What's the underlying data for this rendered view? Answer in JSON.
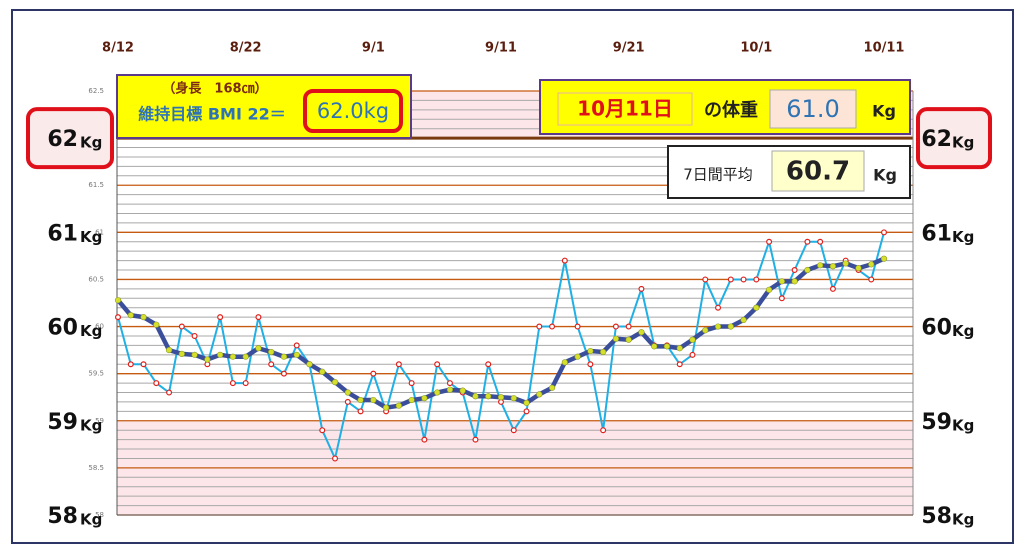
{
  "chart_data": {
    "type": "line",
    "categories": [
      "8/12",
      null,
      null,
      null,
      null,
      null,
      null,
      null,
      null,
      null,
      "8/22",
      null,
      null,
      null,
      null,
      null,
      null,
      null,
      null,
      null,
      "9/1",
      null,
      null,
      null,
      null,
      null,
      null,
      null,
      null,
      null,
      "9/11",
      null,
      null,
      null,
      null,
      null,
      null,
      null,
      null,
      null,
      "9/21",
      null,
      null,
      null,
      null,
      null,
      null,
      null,
      null,
      null,
      "10/1",
      null,
      null,
      null,
      null,
      null,
      null,
      null,
      null,
      null,
      "10/11"
    ],
    "series": [
      {
        "color": "#1fb0e6",
        "marker_color": "#e0201c",
        "values": [
          60.1,
          59.6,
          59.6,
          59.4,
          59.3,
          60.0,
          59.9,
          59.6,
          60.1,
          59.4,
          59.4,
          60.1,
          59.6,
          59.5,
          59.8,
          59.6,
          58.9,
          58.6,
          59.2,
          59.1,
          59.5,
          59.1,
          59.6,
          59.4,
          58.8,
          59.6,
          59.4,
          59.3,
          58.8,
          59.6,
          59.2,
          58.9,
          59.1,
          60.0,
          60.0,
          60.7,
          60.0,
          59.6,
          58.9,
          60.0,
          60.0,
          60.4,
          59.8,
          59.8,
          59.6,
          59.7,
          60.5,
          60.2,
          60.5,
          60.5,
          60.5,
          60.9,
          60.3,
          60.6,
          60.9,
          60.9,
          60.4,
          60.7,
          60.6,
          60.5,
          61.0
        ]
      },
      {
        "color": "#3b4e9c",
        "marker_color": "#d6e02c",
        "values": [
          60.28,
          60.12,
          60.1,
          60.02,
          59.75,
          59.71,
          59.7,
          59.65,
          59.7,
          59.68,
          59.68,
          59.77,
          59.73,
          59.68,
          59.7,
          59.6,
          59.52,
          59.41,
          59.3,
          59.22,
          59.22,
          59.14,
          59.16,
          59.22,
          59.24,
          59.3,
          59.33,
          59.32,
          59.26,
          59.26,
          59.25,
          59.24,
          59.19,
          59.28,
          59.35,
          59.62,
          59.68,
          59.74,
          59.73,
          59.87,
          59.86,
          59.94,
          59.79,
          59.79,
          59.77,
          59.86,
          59.96,
          60.0,
          60.0,
          60.07,
          60.2,
          60.39,
          60.48,
          60.48,
          60.6,
          60.65,
          60.64,
          60.67,
          60.62,
          60.66,
          60.72
        ]
      }
    ],
    "ylim": [
      58,
      62.5
    ],
    "yticks": [
      58,
      58.5,
      59,
      59.5,
      60,
      60.5,
      61,
      61.5,
      62,
      62.5
    ],
    "minor_yticks": [
      58.1,
      58.2,
      58.3,
      58.4,
      58.6,
      58.7,
      58.8,
      58.9,
      59.1,
      59.2,
      59.3,
      59.4,
      59.6,
      59.7,
      59.8,
      59.9,
      60.1,
      60.2,
      60.3,
      60.4,
      60.6,
      60.7,
      60.8,
      60.9,
      61.1,
      61.2,
      61.3,
      61.4,
      61.6,
      61.7,
      61.8,
      61.9,
      62.1,
      62.2,
      62.3,
      62.4
    ],
    "big_yticks": [
      58,
      59,
      60,
      61,
      62
    ],
    "highlight_ytick": 62,
    "unit": "Kg",
    "bands": [
      {
        "from": 62,
        "to": 62.5,
        "color": "#fde6ea"
      },
      {
        "from": 58,
        "to": 59,
        "color": "#fde6ea"
      }
    ],
    "grid": true,
    "height_label": "（身長　168㎝）",
    "target_label": "維持目標 BMI 22＝",
    "target_weight": "62.0kg",
    "date_label": "10月11日",
    "weight_caption": "の体重",
    "current_weight": "61.0",
    "avg_caption": "7日間平均",
    "avg_value": "60.7"
  }
}
